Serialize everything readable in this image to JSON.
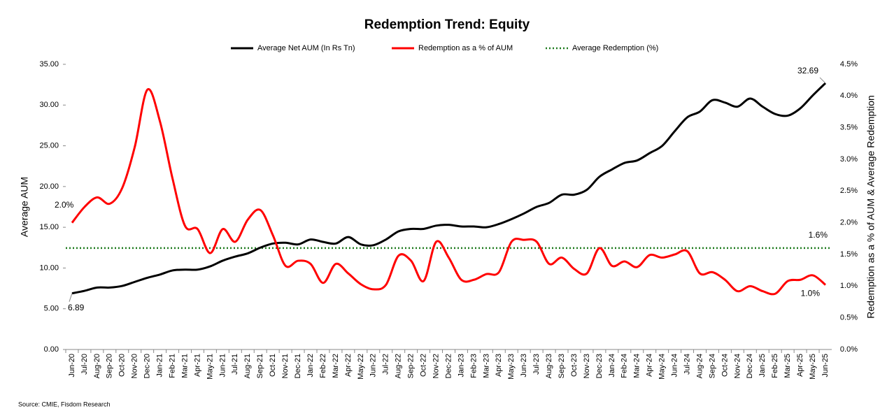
{
  "chart_data": {
    "type": "line",
    "title": "Redemption Trend: Equity",
    "y_label": "Average AUM",
    "y2_label": "Redemption as a % of AUM & Average Redemption",
    "source": "Source: CMIE, Fisdom Research",
    "categories": [
      "Jun-20",
      "Jul-20",
      "Aug-20",
      "Sep-20",
      "Oct-20",
      "Nov-20",
      "Dec-20",
      "Jan-21",
      "Feb-21",
      "Mar-21",
      "Apr-21",
      "May-21",
      "Jun-21",
      "Jul-21",
      "Aug-21",
      "Sep-21",
      "Oct-21",
      "Nov-21",
      "Dec-21",
      "Jan-22",
      "Feb-22",
      "Mar-22",
      "Apr-22",
      "May-22",
      "Jun-22",
      "Jul-22",
      "Aug-22",
      "Sep-22",
      "Oct-22",
      "Nov-22",
      "Dec-22",
      "Jan-23",
      "Feb-23",
      "Mar-23",
      "Apr-23",
      "May-23",
      "Jun-23",
      "Jul-23",
      "Aug-23",
      "Sep-23",
      "Oct-23",
      "Nov-23",
      "Dec-23",
      "Jan-24",
      "Feb-24",
      "Mar-24",
      "Apr-24",
      "May-24",
      "Jun-24",
      "Jul-24",
      "Aug-24",
      "Sep-24",
      "Oct-24",
      "Nov-24",
      "Dec-24",
      "Jan-25",
      "Feb-25",
      "Mar-25",
      "Apr-25",
      "May-25",
      "Jun-25"
    ],
    "series": [
      {
        "name": "Average Net AUM (In Rs Tn)",
        "color": "#000000",
        "axis": "y",
        "values": [
          6.89,
          7.2,
          7.6,
          7.6,
          7.8,
          8.3,
          8.8,
          9.2,
          9.7,
          9.8,
          9.8,
          10.2,
          10.9,
          11.4,
          11.8,
          12.5,
          13.0,
          13.1,
          12.9,
          13.5,
          13.2,
          13.0,
          13.8,
          12.9,
          12.8,
          13.5,
          14.5,
          14.8,
          14.8,
          15.2,
          15.3,
          15.1,
          15.1,
          15.0,
          15.4,
          16.0,
          16.7,
          17.5,
          18.0,
          19.0,
          19.0,
          19.6,
          21.2,
          22.1,
          22.9,
          23.2,
          24.1,
          25.0,
          26.8,
          28.5,
          29.2,
          30.6,
          30.3,
          29.8,
          30.8,
          29.8,
          28.9,
          28.7,
          29.6,
          31.2,
          32.69
        ]
      },
      {
        "name": "Redemption as a % of AUM",
        "color": "#ff0000",
        "axis": "y2",
        "values": [
          2.0,
          2.25,
          2.4,
          2.3,
          2.55,
          3.2,
          4.1,
          3.6,
          2.7,
          1.95,
          1.9,
          1.52,
          1.9,
          1.7,
          2.05,
          2.2,
          1.8,
          1.32,
          1.4,
          1.35,
          1.05,
          1.35,
          1.2,
          1.03,
          0.95,
          1.02,
          1.48,
          1.4,
          1.08,
          1.7,
          1.45,
          1.1,
          1.1,
          1.19,
          1.22,
          1.7,
          1.73,
          1.7,
          1.35,
          1.45,
          1.27,
          1.2,
          1.6,
          1.32,
          1.39,
          1.3,
          1.49,
          1.45,
          1.5,
          1.55,
          1.2,
          1.22,
          1.1,
          0.92,
          1.0,
          0.92,
          0.88,
          1.08,
          1.1,
          1.17,
          1.02
        ],
        "value_labels": [
          "2.0%",
          null,
          null,
          null,
          null,
          null,
          null,
          null,
          null,
          null,
          null,
          null,
          null,
          null,
          null,
          null,
          null,
          null,
          null,
          null,
          null,
          null,
          null,
          null,
          null,
          null,
          null,
          null,
          null,
          null,
          null,
          null,
          null,
          null,
          null,
          null,
          null,
          null,
          null,
          null,
          null,
          null,
          null,
          null,
          null,
          null,
          null,
          null,
          null,
          null,
          null,
          null,
          null,
          null,
          null,
          null,
          null,
          null,
          null,
          null,
          "1.0%"
        ]
      }
    ],
    "reference_line": {
      "name": "Average Redemption (%)",
      "color": "#1e7b1e",
      "axis": "y2",
      "value": 1.6,
      "value_label": "1.6%"
    },
    "ylim": [
      0,
      35
    ],
    "yticks": [
      {
        "value": 0,
        "label": "0.00"
      },
      {
        "value": 5,
        "label": "5.00"
      },
      {
        "value": 10,
        "label": "10.00"
      },
      {
        "value": 15,
        "label": "15.00"
      },
      {
        "value": 20,
        "label": "20.00"
      },
      {
        "value": 25,
        "label": "25.00"
      },
      {
        "value": 30,
        "label": "30.00"
      },
      {
        "value": 35,
        "label": "35.00"
      }
    ],
    "y2lim": [
      0,
      4.5
    ],
    "y2ticks": [
      {
        "value": 0,
        "label": "0.0%"
      },
      {
        "value": 0.5,
        "label": "0.5%"
      },
      {
        "value": 1,
        "label": "1.0%"
      },
      {
        "value": 1.5,
        "label": "1.5%"
      },
      {
        "value": 2,
        "label": "2.0%"
      },
      {
        "value": 2.5,
        "label": "2.5%"
      },
      {
        "value": 3,
        "label": "3.0%"
      },
      {
        "value": 3.5,
        "label": "3.5%"
      },
      {
        "value": 4,
        "label": "4.0%"
      },
      {
        "value": 4.5,
        "label": "4.5%"
      }
    ],
    "legend": "top",
    "grid": false
  }
}
